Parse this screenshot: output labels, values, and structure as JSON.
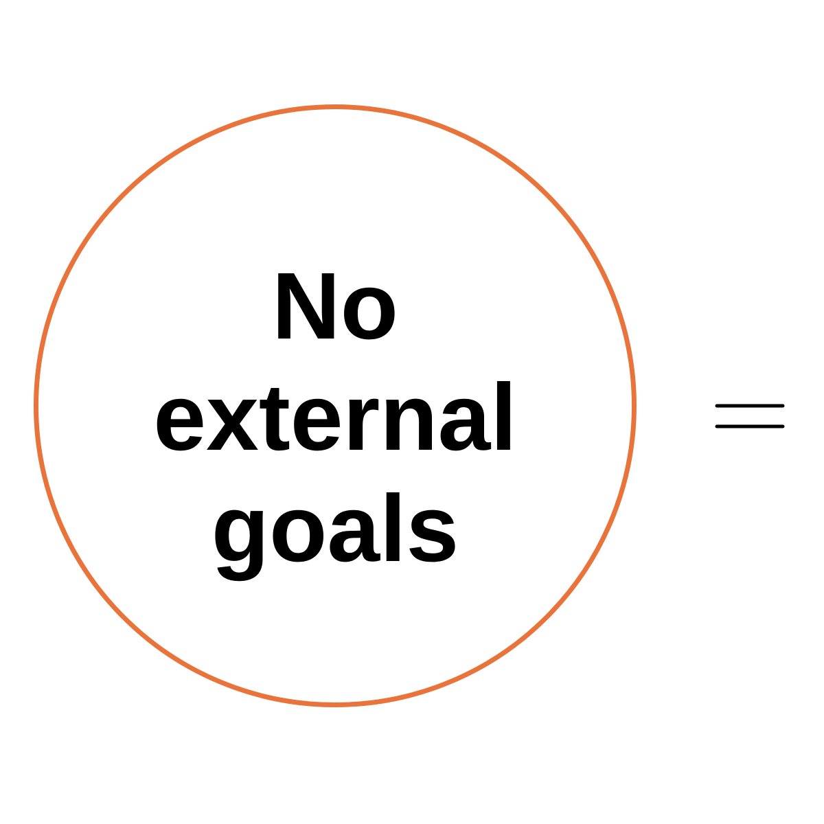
{
  "circle": {
    "lines": [
      "No",
      "external",
      "goals"
    ],
    "border_color": "#E8743B"
  },
  "connector": {
    "icon": "equals-icon"
  }
}
